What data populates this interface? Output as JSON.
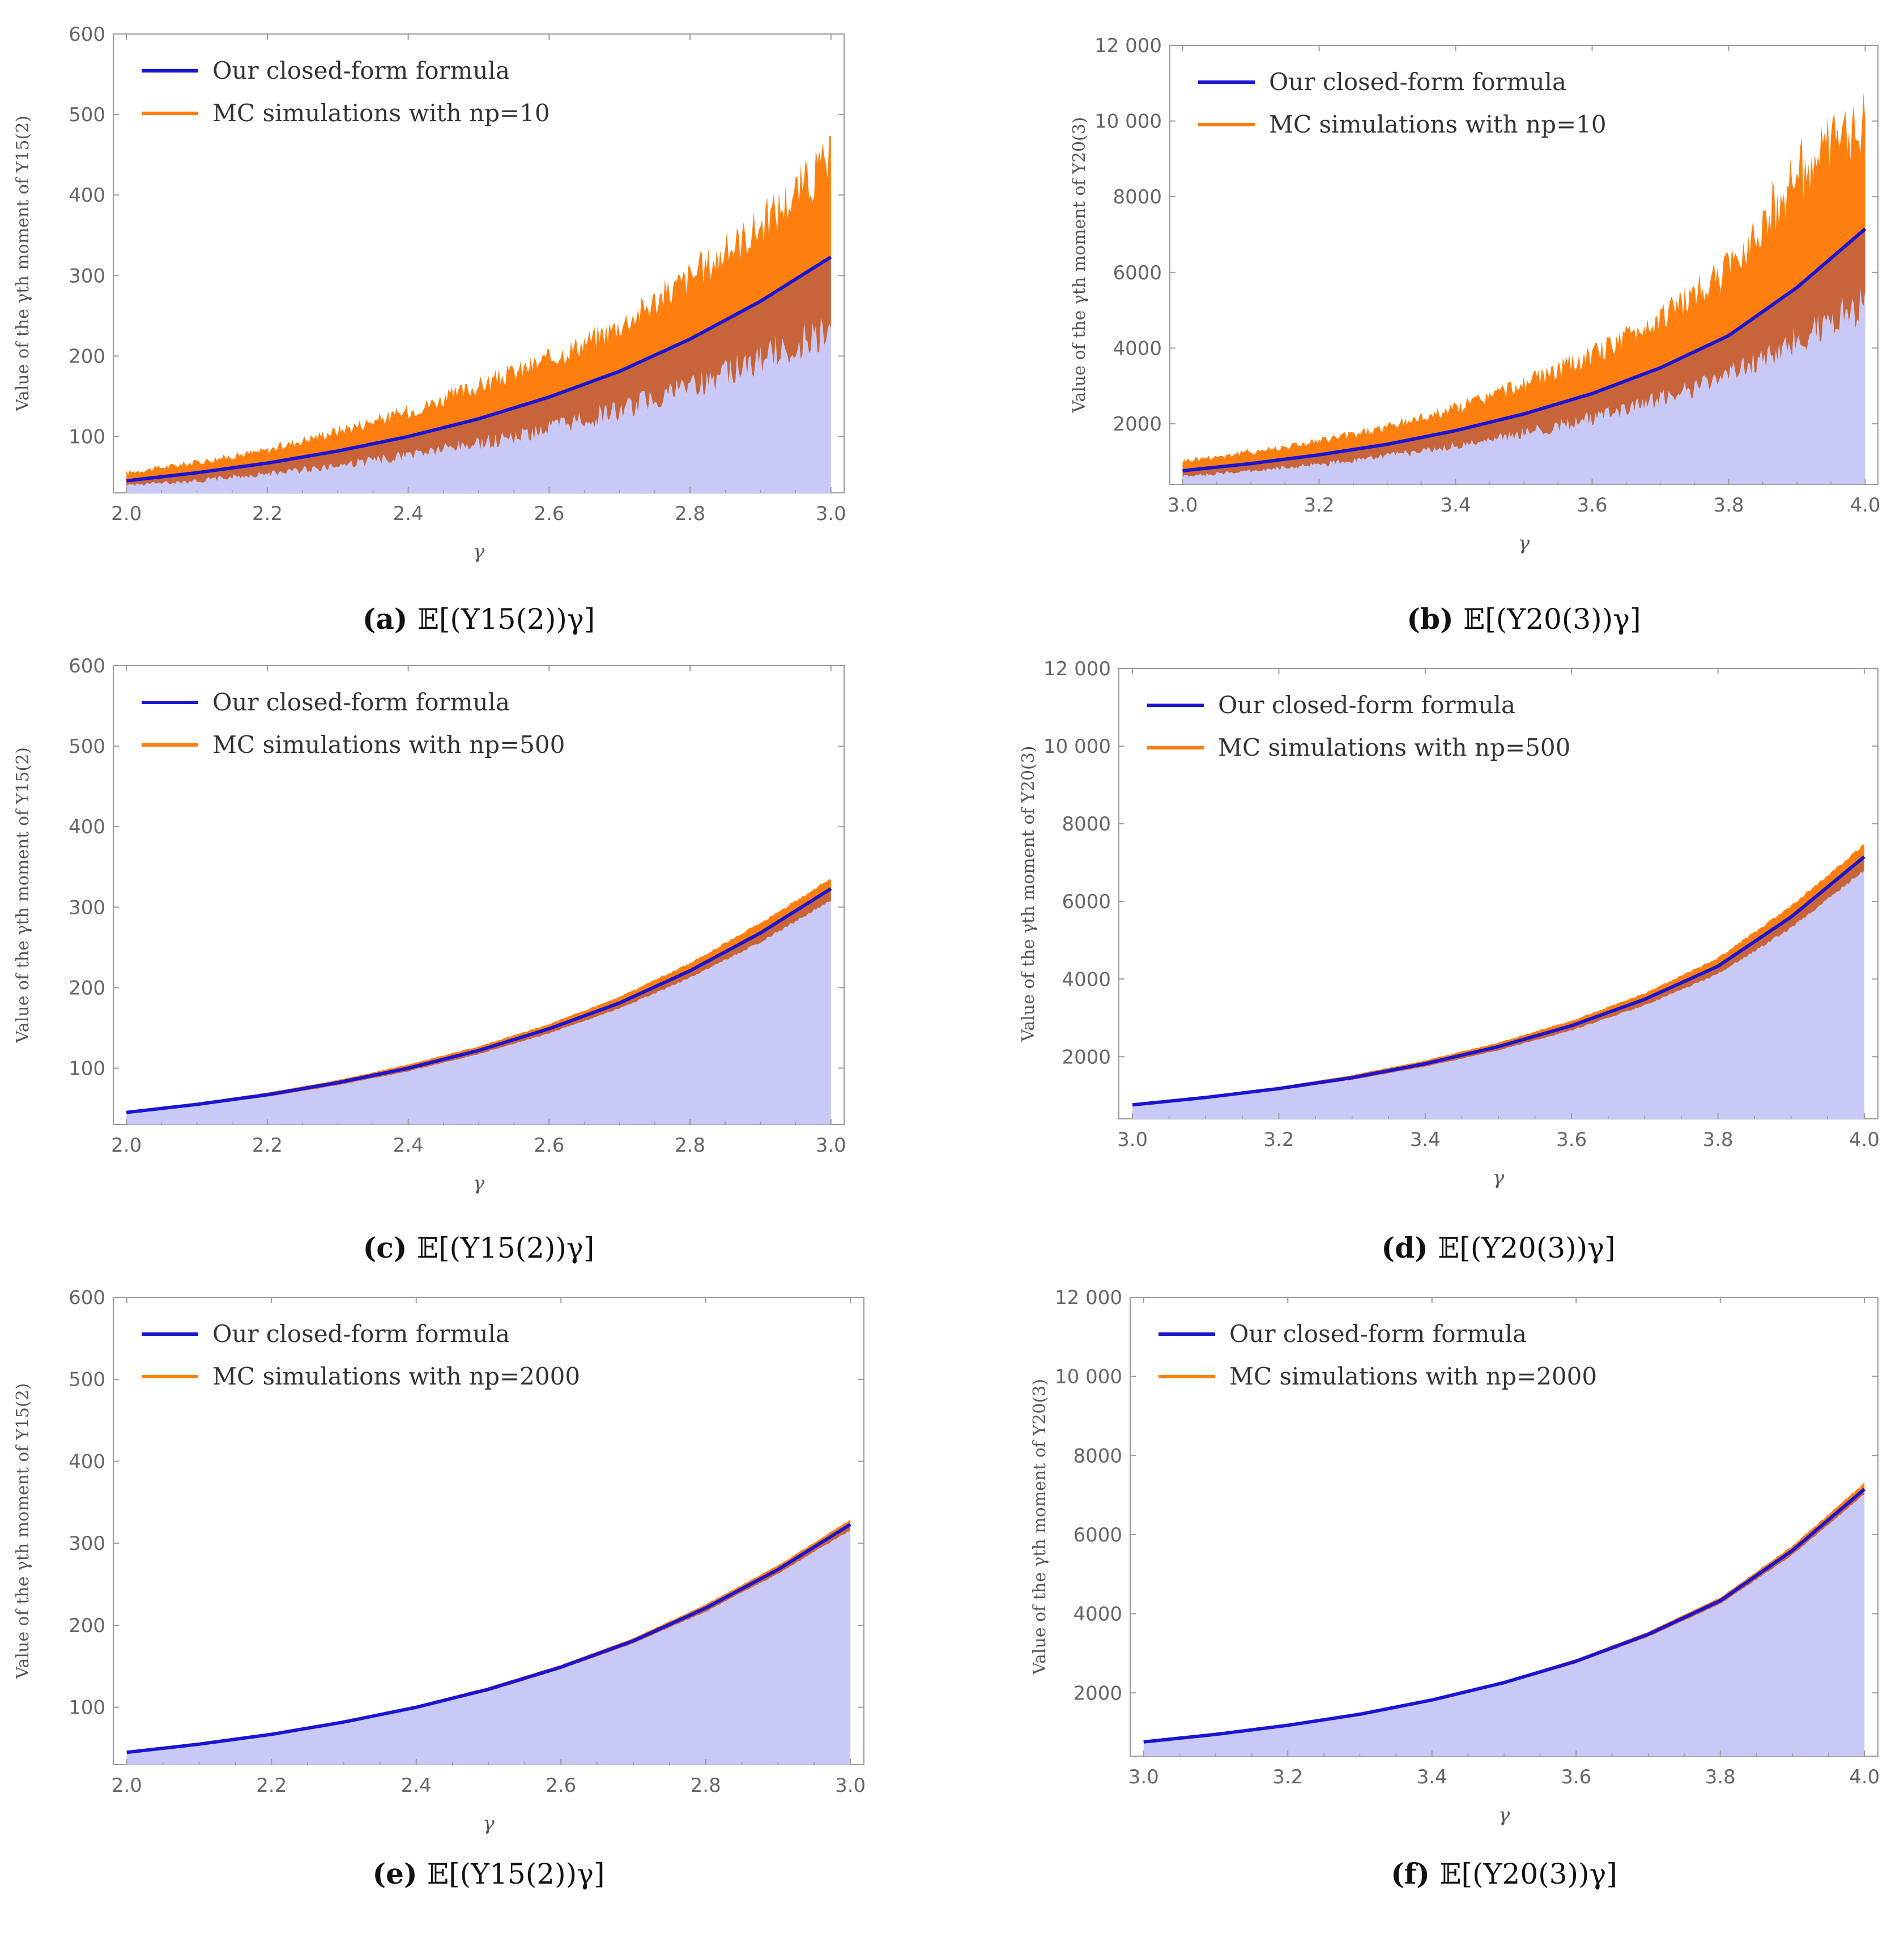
{
  "figure": {
    "panels": [
      {
        "id": "a",
        "caption_letter": "(a)",
        "caption_text": "𝔼[(Y15(2))γ]",
        "ylabel": "Value of the γth moment of Y15(2)",
        "legend": [
          "Our closed-form formula",
          "MC simulations with np=10"
        ]
      },
      {
        "id": "b",
        "caption_letter": "(b)",
        "caption_text": "𝔼[(Y20(3))γ]",
        "ylabel": "Value of the γth moment of Y20(3)",
        "legend": [
          "Our closed-form formula",
          "MC simulations with np=10"
        ]
      },
      {
        "id": "c",
        "caption_letter": "(c)",
        "caption_text": "𝔼[(Y15(2))γ]",
        "ylabel": "Value of the γth moment of Y15(2)",
        "legend": [
          "Our closed-form formula",
          "MC simulations with np=500"
        ]
      },
      {
        "id": "d",
        "caption_letter": "(d)",
        "caption_text": "𝔼[(Y20(3))γ]",
        "ylabel": "Value of the γth moment of Y20(3)",
        "legend": [
          "Our closed-form formula",
          "MC simulations with np=500"
        ]
      },
      {
        "id": "e",
        "caption_letter": "(e)",
        "caption_text": "𝔼[(Y15(2))γ]",
        "ylabel": "Value of the γth moment of Y15(2)",
        "legend": [
          "Our closed-form formula",
          "MC simulations with np=2000"
        ]
      },
      {
        "id": "f",
        "caption_letter": "(f)",
        "caption_text": "𝔼[(Y20(3))γ]",
        "ylabel": "Value of the γth moment of Y20(3)",
        "legend": [
          "Our closed-form formula",
          "MC simulations with np=2000"
        ]
      }
    ]
  },
  "colors": {
    "formula": "#1a14d4",
    "mc": "#ff7f0e",
    "mc_dark": "#c8643a",
    "fill": "#c9c9f7",
    "frame": "#9a9a9a"
  },
  "chart_data": [
    {
      "type": "line",
      "panel": "a",
      "xlabel": "γ",
      "xlim": [
        2.0,
        3.0
      ],
      "ylim": [
        30,
        600
      ],
      "xticks": [
        "2.0",
        "2.2",
        "2.4",
        "2.6",
        "2.8",
        "3.0"
      ],
      "yticks": [
        "100",
        "200",
        "300",
        "400",
        "500",
        "600"
      ],
      "series": [
        {
          "name": "Our closed-form formula",
          "x": [
            2.0,
            2.1,
            2.2,
            2.3,
            2.4,
            2.5,
            2.6,
            2.7,
            2.8,
            2.9,
            3.0
          ],
          "y": [
            45,
            55,
            67,
            82,
            100,
            122,
            149,
            181,
            221,
            268,
            323
          ]
        },
        {
          "name": "MC simulations with np=10",
          "x": [
            2.0,
            2.1,
            2.2,
            2.3,
            2.4,
            2.5,
            2.6,
            2.7,
            2.8,
            2.9,
            3.0
          ],
          "y_low": [
            38,
            42,
            50,
            58,
            70,
            82,
            98,
            118,
            145,
            175,
            210
          ],
          "y_high": [
            58,
            72,
            88,
            115,
            140,
            175,
            210,
            255,
            320,
            390,
            480
          ]
        }
      ]
    },
    {
      "type": "line",
      "panel": "b",
      "xlabel": "γ",
      "xlim": [
        3.0,
        4.0
      ],
      "ylim": [
        400,
        12000
      ],
      "xticks": [
        "3.0",
        "3.2",
        "3.4",
        "3.6",
        "3.8",
        "4.0"
      ],
      "yticks": [
        "2000",
        "4000",
        "6000",
        "8000",
        "10 000",
        "12 000"
      ],
      "series": [
        {
          "name": "Our closed-form formula",
          "x": [
            3.0,
            3.1,
            3.2,
            3.3,
            3.4,
            3.5,
            3.6,
            3.7,
            3.8,
            3.9,
            4.0
          ],
          "y": [
            760,
            950,
            1180,
            1460,
            1820,
            2260,
            2800,
            3480,
            4330,
            5600,
            7150
          ]
        },
        {
          "name": "MC simulations with np=10",
          "x": [
            3.0,
            3.1,
            3.2,
            3.3,
            3.4,
            3.5,
            3.6,
            3.7,
            3.8,
            3.9,
            4.0
          ],
          "y_low": [
            560,
            700,
            850,
            1050,
            1300,
            1600,
            1950,
            2400,
            3000,
            3800,
            4600
          ],
          "y_high": [
            1100,
            1350,
            1650,
            2050,
            2600,
            3300,
            4100,
            5200,
            6600,
            9500,
            10900
          ]
        }
      ]
    },
    {
      "type": "line",
      "panel": "c",
      "xlabel": "γ",
      "xlim": [
        2.0,
        3.0
      ],
      "ylim": [
        30,
        600
      ],
      "xticks": [
        "2.0",
        "2.2",
        "2.4",
        "2.6",
        "2.8",
        "3.0"
      ],
      "yticks": [
        "100",
        "200",
        "300",
        "400",
        "500",
        "600"
      ],
      "series": [
        {
          "name": "Our closed-form formula",
          "x": [
            2.0,
            2.1,
            2.2,
            2.3,
            2.4,
            2.5,
            2.6,
            2.7,
            2.8,
            2.9,
            3.0
          ],
          "y": [
            45,
            55,
            67,
            82,
            100,
            122,
            149,
            181,
            221,
            268,
            323
          ]
        },
        {
          "name": "MC simulations with np=500",
          "x": [
            2.0,
            2.1,
            2.2,
            2.3,
            2.4,
            2.5,
            2.6,
            2.7,
            2.8,
            2.9,
            3.0
          ],
          "y_low": [
            43,
            52,
            63,
            77,
            94,
            115,
            140,
            170,
            207,
            250,
            300
          ],
          "y_high": [
            47,
            58,
            71,
            87,
            107,
            130,
            158,
            193,
            236,
            288,
            342
          ]
        }
      ]
    },
    {
      "type": "line",
      "panel": "d",
      "xlabel": "γ",
      "xlim": [
        3.0,
        4.0
      ],
      "ylim": [
        400,
        12000
      ],
      "xticks": [
        "3.0",
        "3.2",
        "3.4",
        "3.6",
        "3.8",
        "4.0"
      ],
      "yticks": [
        "2000",
        "4000",
        "6000",
        "8000",
        "10 000",
        "12 000"
      ],
      "series": [
        {
          "name": "Our closed-form formula",
          "x": [
            3.0,
            3.1,
            3.2,
            3.3,
            3.4,
            3.5,
            3.6,
            3.7,
            3.8,
            3.9,
            4.0
          ],
          "y": [
            760,
            950,
            1180,
            1460,
            1820,
            2260,
            2800,
            3480,
            4330,
            5600,
            7150
          ]
        },
        {
          "name": "MC simulations with np=500",
          "x": [
            3.0,
            3.1,
            3.2,
            3.3,
            3.4,
            3.5,
            3.6,
            3.7,
            3.8,
            3.9,
            4.0
          ],
          "y_low": [
            720,
            900,
            1110,
            1370,
            1700,
            2110,
            2610,
            3230,
            4010,
            5150,
            6600
          ],
          "y_high": [
            800,
            1000,
            1250,
            1560,
            1950,
            2420,
            3000,
            3730,
            4660,
            6050,
            7650
          ]
        }
      ]
    },
    {
      "type": "line",
      "panel": "e",
      "xlabel": "γ",
      "xlim": [
        2.0,
        3.0
      ],
      "ylim": [
        30,
        600
      ],
      "xticks": [
        "2.0",
        "2.2",
        "2.4",
        "2.6",
        "2.8",
        "3.0"
      ],
      "yticks": [
        "100",
        "200",
        "300",
        "400",
        "500",
        "600"
      ],
      "series": [
        {
          "name": "Our closed-form formula",
          "x": [
            2.0,
            2.1,
            2.2,
            2.3,
            2.4,
            2.5,
            2.6,
            2.7,
            2.8,
            2.9,
            3.0
          ],
          "y": [
            45,
            55,
            67,
            82,
            100,
            122,
            149,
            181,
            221,
            268,
            323
          ]
        },
        {
          "name": "MC simulations with np=2000",
          "x": [
            2.0,
            2.1,
            2.2,
            2.3,
            2.4,
            2.5,
            2.6,
            2.7,
            2.8,
            2.9,
            3.0
          ],
          "y_low": [
            44,
            54,
            65,
            80,
            97,
            118,
            145,
            176,
            214,
            260,
            312
          ],
          "y_high": [
            46,
            56,
            69,
            84,
            103,
            126,
            153,
            186,
            228,
            276,
            332
          ]
        }
      ]
    },
    {
      "type": "line",
      "panel": "f",
      "xlabel": "γ",
      "xlim": [
        3.0,
        4.0
      ],
      "ylim": [
        400,
        12000
      ],
      "xticks": [
        "3.0",
        "3.2",
        "3.4",
        "3.6",
        "3.8",
        "4.0"
      ],
      "yticks": [
        "2000",
        "4000",
        "6000",
        "8000",
        "10 000",
        "12 000"
      ],
      "series": [
        {
          "name": "Our closed-form formula",
          "x": [
            3.0,
            3.1,
            3.2,
            3.3,
            3.4,
            3.5,
            3.6,
            3.7,
            3.8,
            3.9,
            4.0
          ],
          "y": [
            760,
            950,
            1180,
            1460,
            1820,
            2260,
            2800,
            3480,
            4330,
            5600,
            7150
          ]
        },
        {
          "name": "MC simulations with np=2000",
          "x": [
            3.0,
            3.1,
            3.2,
            3.3,
            3.4,
            3.5,
            3.6,
            3.7,
            3.8,
            3.9,
            4.0
          ],
          "y_low": [
            740,
            925,
            1150,
            1420,
            1770,
            2200,
            2720,
            3380,
            4200,
            5420,
            6950
          ],
          "y_high": [
            780,
            975,
            1210,
            1500,
            1870,
            2320,
            2880,
            3580,
            4460,
            5780,
            7400
          ]
        }
      ]
    }
  ]
}
